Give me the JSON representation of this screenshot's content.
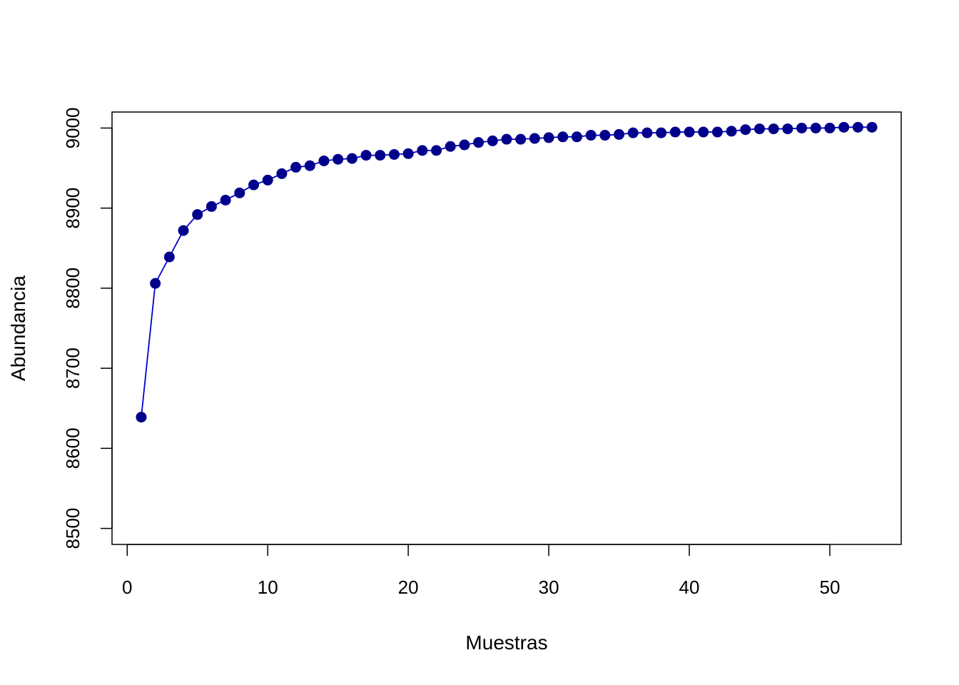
{
  "chart_data": {
    "type": "line",
    "title": "",
    "xlabel": "Muestras",
    "ylabel": "Abundancia",
    "xlim": [
      0,
      55
    ],
    "ylim": [
      8500,
      9020
    ],
    "xticks": [
      "0",
      "10",
      "20",
      "30",
      "40",
      "50"
    ],
    "yticks": [
      "8500",
      "8600",
      "8700",
      "8800",
      "8900",
      "9000"
    ],
    "grid": false,
    "legend": "none",
    "line_color": "#0000cd",
    "point_color": "#00008b",
    "series": [
      {
        "x": [
          1,
          2,
          3,
          4,
          5,
          6,
          7,
          8,
          9,
          10,
          11,
          12,
          13,
          14,
          15,
          16,
          17,
          18,
          19,
          20,
          21,
          22,
          23,
          24,
          25,
          26,
          27,
          28,
          29,
          30,
          31,
          32,
          33,
          34,
          35,
          36,
          37,
          38,
          39,
          40,
          41,
          42,
          43,
          44,
          45,
          46,
          47,
          48,
          49,
          50,
          51,
          52,
          53
        ],
        "values": [
          8639,
          8806,
          8839,
          8872,
          8892,
          8902,
          8910,
          8919,
          8929,
          8935,
          8943,
          8951,
          8953,
          8959,
          8961,
          8962,
          8966,
          8966,
          8967,
          8968,
          8972,
          8972,
          8977,
          8979,
          8982,
          8984,
          8986,
          8986,
          8987,
          8988,
          8989,
          8989,
          8991,
          8991,
          8992,
          8994,
          8994,
          8994,
          8995,
          8995,
          8995,
          8995,
          8996,
          8998,
          8999,
          8999,
          8999,
          9000,
          9000,
          9000,
          9001,
          9001,
          9001
        ]
      }
    ]
  }
}
